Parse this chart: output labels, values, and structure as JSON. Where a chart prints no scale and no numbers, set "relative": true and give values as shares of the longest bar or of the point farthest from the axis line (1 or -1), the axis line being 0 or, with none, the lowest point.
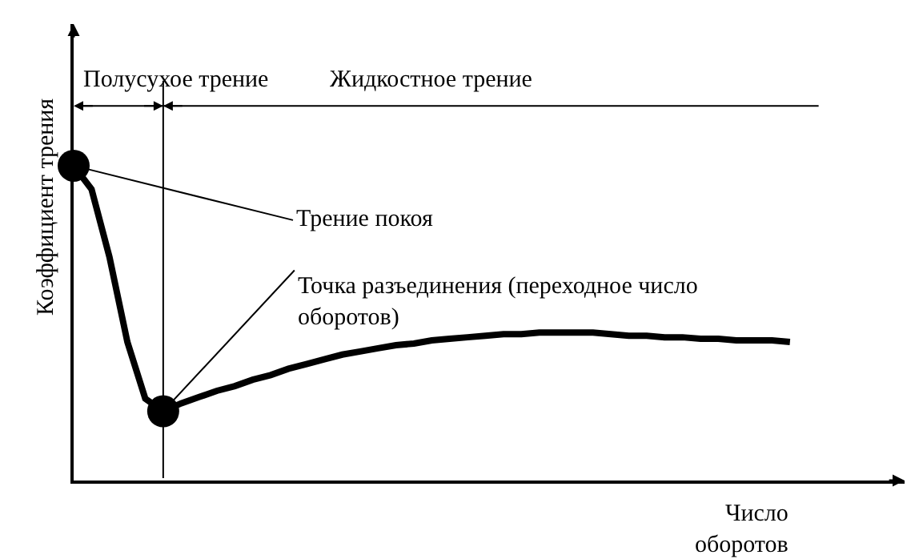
{
  "chart_data": {
    "type": "line",
    "relative": true,
    "xlabel": "Число\nоборотов",
    "ylabel": "Коэффициент трения",
    "categories": [
      null,
      null,
      null,
      null,
      null,
      null,
      null,
      null,
      null,
      null,
      null,
      null,
      null,
      null,
      null,
      null,
      null,
      null,
      null,
      null,
      null,
      null,
      null,
      null,
      null,
      null,
      null,
      null,
      null,
      null,
      null,
      null,
      null,
      null,
      null,
      null,
      null,
      null,
      null,
      null,
      null
    ],
    "series": [
      {
        "color": "#000000",
        "values": [
          1.0,
          0.925,
          0.71,
          0.44,
          0.26,
          0.22,
          0.245,
          0.265,
          0.285,
          0.3,
          0.32,
          0.335,
          0.355,
          0.37,
          0.385,
          0.4,
          0.41,
          0.42,
          0.43,
          0.435,
          0.445,
          0.45,
          0.455,
          0.46,
          0.465,
          0.465,
          0.47,
          0.47,
          0.47,
          0.47,
          0.465,
          0.46,
          0.46,
          0.455,
          0.455,
          0.45,
          0.45,
          0.445,
          0.445,
          0.445,
          0.44
        ]
      }
    ],
    "annotations": [
      "Полусухое трение",
      "Жидкостное трение",
      "Трение покоя",
      "Точка разъединения (переходное число\nоборотов)"
    ]
  }
}
